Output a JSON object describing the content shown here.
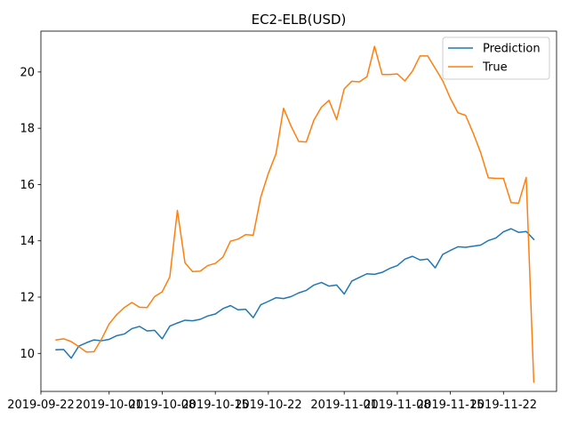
{
  "chart_data": {
    "type": "line",
    "title": "EC2-ELB(USD)",
    "xlabel": "",
    "ylabel": "",
    "x_type": "date",
    "xlim": [
      "2019-09-22",
      "2019-11-29"
    ],
    "ylim": [
      8.65,
      21.45
    ],
    "xticks": [
      {
        "date": "2019-09-22",
        "label": "2019-09-22"
      },
      {
        "date": "2019-10-01",
        "label": "2019-10-01"
      },
      {
        "date": "2019-10-08",
        "label": "2019-10-08"
      },
      {
        "date": "2019-10-15",
        "label": "2019-10-15"
      },
      {
        "date": "2019-10-22",
        "label": "2019-10-22"
      },
      {
        "date": "2019-11-01",
        "label": "2019-11-01"
      },
      {
        "date": "2019-11-08",
        "label": "2019-11-08"
      },
      {
        "date": "2019-11-15",
        "label": "2019-11-15"
      },
      {
        "date": "2019-11-22",
        "label": "2019-11-22"
      }
    ],
    "yticks": [
      10,
      12,
      14,
      16,
      18,
      20
    ],
    "grid": false,
    "legend_position": "top-right",
    "x": [
      "2019-09-24",
      "2019-09-25",
      "2019-09-26",
      "2019-09-27",
      "2019-09-28",
      "2019-09-29",
      "2019-09-30",
      "2019-10-01",
      "2019-10-02",
      "2019-10-03",
      "2019-10-04",
      "2019-10-05",
      "2019-10-06",
      "2019-10-07",
      "2019-10-08",
      "2019-10-09",
      "2019-10-10",
      "2019-10-11",
      "2019-10-12",
      "2019-10-13",
      "2019-10-14",
      "2019-10-15",
      "2019-10-16",
      "2019-10-17",
      "2019-10-18",
      "2019-10-19",
      "2019-10-20",
      "2019-10-21",
      "2019-10-22",
      "2019-10-23",
      "2019-10-24",
      "2019-10-25",
      "2019-10-26",
      "2019-10-27",
      "2019-10-28",
      "2019-10-29",
      "2019-10-30",
      "2019-10-31",
      "2019-11-01",
      "2019-11-02",
      "2019-11-03",
      "2019-11-04",
      "2019-11-05",
      "2019-11-06",
      "2019-11-07",
      "2019-11-08",
      "2019-11-09",
      "2019-11-10",
      "2019-11-11",
      "2019-11-12",
      "2019-11-13",
      "2019-11-14",
      "2019-11-15",
      "2019-11-16",
      "2019-11-17",
      "2019-11-18",
      "2019-11-19",
      "2019-11-20",
      "2019-11-21",
      "2019-11-22",
      "2019-11-23",
      "2019-11-24",
      "2019-11-25",
      "2019-11-26"
    ],
    "series": [
      {
        "name": "Prediction",
        "color": "#1f77b4",
        "values": [
          10.13,
          10.14,
          9.83,
          10.26,
          10.38,
          10.48,
          10.45,
          10.5,
          10.63,
          10.69,
          10.88,
          10.96,
          10.8,
          10.82,
          10.52,
          10.97,
          11.08,
          11.18,
          11.16,
          11.21,
          11.33,
          11.4,
          11.59,
          11.7,
          11.55,
          11.57,
          11.27,
          11.73,
          11.85,
          11.98,
          11.95,
          12.02,
          12.15,
          12.24,
          12.43,
          12.52,
          12.39,
          12.43,
          12.11,
          12.57,
          12.7,
          12.83,
          12.81,
          12.88,
          13.02,
          13.12,
          13.35,
          13.45,
          13.32,
          13.35,
          13.04,
          13.52,
          13.66,
          13.79,
          13.77,
          13.81,
          13.85,
          14.01,
          14.1,
          14.32,
          14.43,
          14.3,
          14.33,
          14.05
        ]
      },
      {
        "name": "True",
        "color": "#ff7f0e",
        "values": [
          10.48,
          10.52,
          10.42,
          10.24,
          10.05,
          10.06,
          10.51,
          11.05,
          11.38,
          11.63,
          11.81,
          11.64,
          11.63,
          12.02,
          12.19,
          12.72,
          15.08,
          13.22,
          12.91,
          12.92,
          13.12,
          13.2,
          13.42,
          13.99,
          14.06,
          14.22,
          14.2,
          15.56,
          16.4,
          17.09,
          18.71,
          18.07,
          17.53,
          17.51,
          18.29,
          18.75,
          18.99,
          18.31,
          19.4,
          19.67,
          19.65,
          19.83,
          20.91,
          19.91,
          19.91,
          19.93,
          19.68,
          20.03,
          20.57,
          20.57,
          20.13,
          19.68,
          19.06,
          18.55,
          18.46,
          17.83,
          17.13,
          16.24,
          16.22,
          16.22,
          15.36,
          15.34,
          16.25,
          8.98
        ]
      }
    ]
  }
}
